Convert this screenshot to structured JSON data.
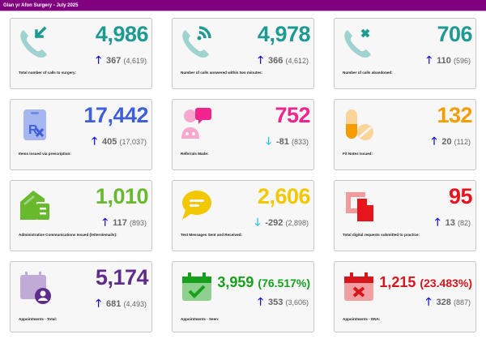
{
  "header": {
    "title": "Glan yr Afon Surgery - July 2025"
  },
  "colors": {
    "header_bg": "#800080",
    "arrow_up": "#1515e0",
    "arrow_down": "#2ec4e6"
  },
  "cards": [
    {
      "label": "Total number of calls to surgery:",
      "value": "4,986",
      "pct": "",
      "delta": "367",
      "previous": "(4,619)",
      "direction": "up",
      "icon": "phone-incoming-icon",
      "color": "#1e9a93"
    },
    {
      "label": "Number of calls answered within two minutes:",
      "value": "4,978",
      "pct": "",
      "delta": "366",
      "previous": "(4,612)",
      "direction": "up",
      "icon": "phone-answered-icon",
      "color": "#1e9a93"
    },
    {
      "label": "Number of calls abandoned:",
      "value": "706",
      "pct": "",
      "delta": "110",
      "previous": "(596)",
      "direction": "up",
      "icon": "phone-missed-icon",
      "color": "#1e9a93"
    },
    {
      "label": "Items issued via prescription:",
      "value": "17,442",
      "pct": "",
      "delta": "405",
      "previous": "(17,037)",
      "direction": "up",
      "icon": "prescription-icon",
      "color": "#3f5fd6"
    },
    {
      "label": "Referrals Made:",
      "value": "752",
      "pct": "",
      "delta": "-81",
      "previous": "(833)",
      "direction": "down",
      "icon": "referral-icon",
      "color": "#f0248c"
    },
    {
      "label": "Fit Notes Issued:",
      "value": "132",
      "pct": "",
      "delta": "20",
      "previous": "(112)",
      "direction": "up",
      "icon": "pills-icon",
      "color": "#f59c00"
    },
    {
      "label": "Administrative Communications Issued (letters/emails):",
      "value": "1,010",
      "pct": "",
      "delta": "117",
      "previous": "(893)",
      "direction": "up",
      "icon": "mail-house-icon",
      "color": "#68b92e"
    },
    {
      "label": "Text Messages Sent and Received:",
      "value": "2,606",
      "pct": "",
      "delta": "-292",
      "previous": "(2,898)",
      "direction": "down",
      "icon": "chat-bubble-icon",
      "color": "#f2c800"
    },
    {
      "label": "Total digital requests submitted to practice:",
      "value": "95",
      "pct": "",
      "delta": "13",
      "previous": "(82)",
      "direction": "up",
      "icon": "digital-request-icon",
      "color": "#e8141c"
    },
    {
      "label": "Appointments - Total:",
      "value": "5,174",
      "pct": "",
      "delta": "681",
      "previous": "(4,493)",
      "direction": "up",
      "icon": "calendar-person-icon",
      "color": "#5e2d8c"
    },
    {
      "label": "Appointments - Seen:",
      "value": "3,959",
      "pct": "(76.517%)",
      "delta": "353",
      "previous": "(3,606)",
      "direction": "up",
      "icon": "calendar-check-icon",
      "color": "#16a01c"
    },
    {
      "label": "Appointments - DNA:",
      "value": "1,215",
      "pct": "(23.483%)",
      "delta": "328",
      "previous": "(887)",
      "direction": "up",
      "icon": "calendar-x-icon",
      "color": "#d8141c"
    }
  ],
  "glyphs": {
    "up": "🡑",
    "down": "🡓"
  }
}
